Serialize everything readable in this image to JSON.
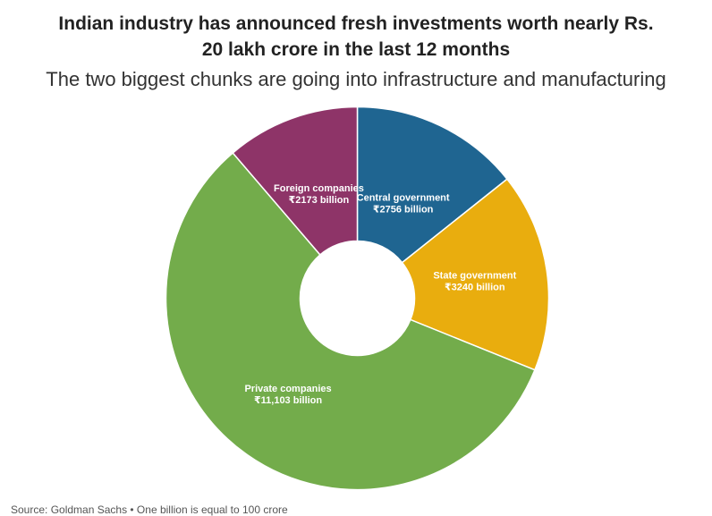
{
  "chart_data": {
    "type": "pie",
    "title_lines": [
      "Indian industry has announced fresh investments worth nearly Rs.",
      "20 lakh crore in the last 12 months"
    ],
    "subtitle": "The two biggest chunks are going into infrastructure and manufacturing",
    "slices": [
      {
        "name": "Central government",
        "value": 2756,
        "value_label": "₹2756 billion",
        "color": "#1f6591"
      },
      {
        "name": "State government",
        "value": 3240,
        "value_label": "₹3240 billion",
        "color": "#e9ad0e"
      },
      {
        "name": "Private companies",
        "value": 11103,
        "value_label": "₹11,103 billion",
        "color": "#73ac4b"
      },
      {
        "name": "Foreign companies",
        "value": 2173,
        "value_label": "₹2173 billion",
        "color": "#8e3468"
      }
    ],
    "donut": true
  },
  "source": "Source: Goldman Sachs • One billion is equal to 100 crore"
}
